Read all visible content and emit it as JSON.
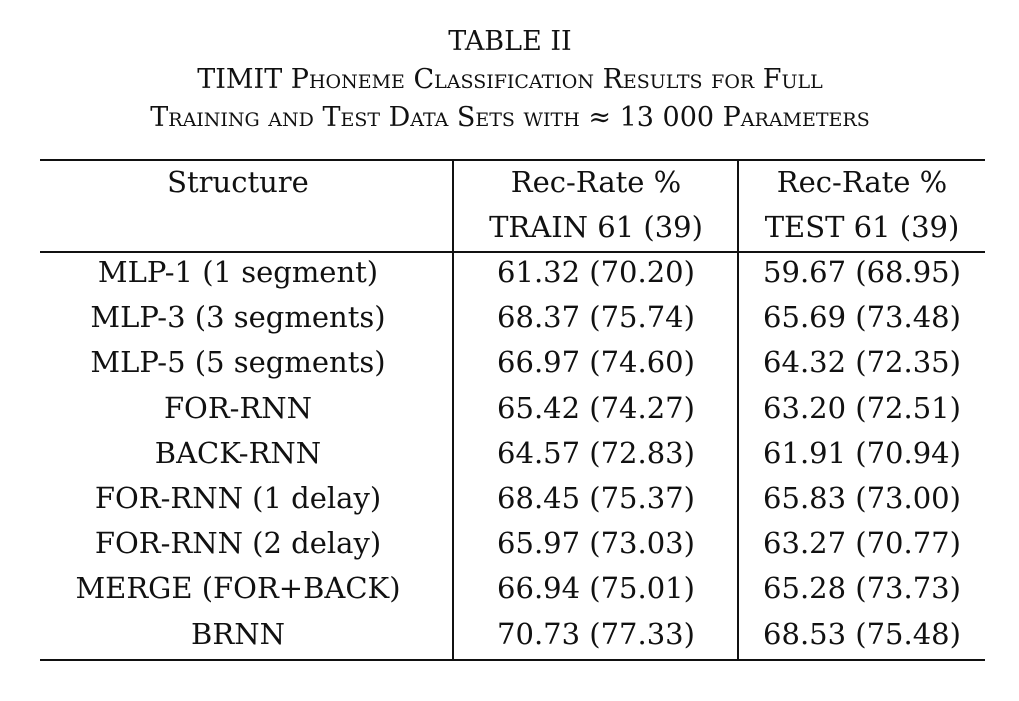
{
  "caption": {
    "label": "TABLE II",
    "lines": [
      "TIMIT Phoneme Classification Results for Full",
      "Training and Test Data Sets with ≈ 13 000 Parameters"
    ]
  },
  "table": {
    "header": [
      [
        "Structure"
      ],
      [
        "Rec-Rate %",
        "TRAIN 61 (39)"
      ],
      [
        "Rec-Rate %",
        "TEST 61 (39)"
      ]
    ],
    "rows": [
      [
        "MLP-1 (1 segment)",
        "61.32 (70.20)",
        "59.67 (68.95)"
      ],
      [
        "MLP-3 (3 segments)",
        "68.37 (75.74)",
        "65.69 (73.48)"
      ],
      [
        "MLP-5 (5 segments)",
        "66.97 (74.60)",
        "64.32 (72.35)"
      ],
      [
        "FOR-RNN",
        "65.42 (74.27)",
        "63.20 (72.51)"
      ],
      [
        "BACK-RNN",
        "64.57 (72.83)",
        "61.91 (70.94)"
      ],
      [
        "FOR-RNN (1 delay)",
        "68.45 (75.37)",
        "65.83 (73.00)"
      ],
      [
        "FOR-RNN (2 delay)",
        "65.97 (73.03)",
        "63.27 (70.77)"
      ],
      [
        "MERGE (FOR+BACK)",
        "66.94 (75.01)",
        "65.28 (73.73)"
      ],
      [
        "BRNN",
        "70.73 (77.33)",
        "68.53 (75.48)"
      ]
    ]
  }
}
